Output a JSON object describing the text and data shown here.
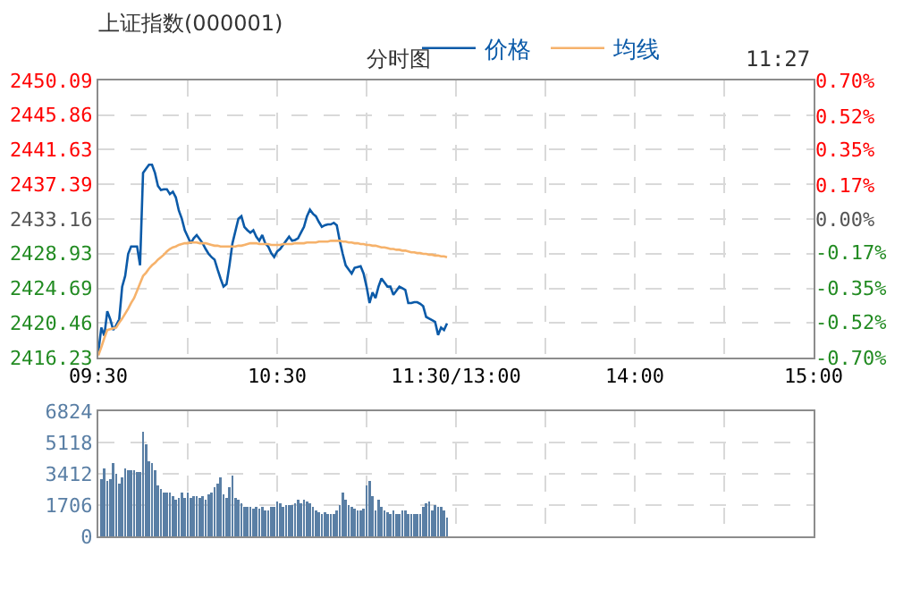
{
  "chart_data": [
    {
      "type": "line",
      "title": "上证指数(000001)",
      "subtitle": "分时图",
      "annotations": [
        "11:27"
      ],
      "legend": "top",
      "grid": true,
      "categories": [
        "09:30",
        null,
        null,
        null,
        null,
        null,
        null,
        null,
        null,
        null,
        null,
        null,
        null,
        null,
        null,
        null,
        null,
        null,
        null,
        null,
        null,
        null,
        null,
        null,
        null,
        null,
        null,
        null,
        null,
        null,
        null,
        null,
        null,
        null,
        null,
        null,
        null,
        null,
        null,
        null,
        null,
        null,
        null,
        null,
        null,
        null,
        null,
        null,
        null,
        null,
        null,
        null,
        null,
        null,
        null,
        null,
        null,
        null,
        null,
        null,
        "10:30",
        null,
        null,
        null,
        null,
        null,
        null,
        null,
        null,
        null,
        null,
        null,
        null,
        null,
        null,
        null,
        null,
        null,
        null,
        null,
        null,
        null,
        null,
        null,
        null,
        null,
        null,
        null,
        null,
        null,
        null,
        null,
        null,
        null,
        null,
        null,
        null,
        null,
        null,
        null,
        null,
        null,
        null,
        null,
        null,
        null,
        null,
        null,
        null,
        null,
        null,
        null,
        null,
        null,
        null,
        null,
        null,
        null,
        null,
        null,
        "11:30/13:00",
        null,
        null,
        null,
        null,
        null,
        null,
        null,
        null,
        null,
        null,
        null,
        null,
        null,
        null,
        null,
        null,
        null,
        null,
        null,
        null,
        null,
        null,
        null,
        null,
        null,
        null,
        null,
        null,
        null,
        null,
        null,
        null,
        null,
        null,
        null,
        null,
        null,
        null,
        null,
        null,
        null,
        null,
        null,
        null,
        null,
        null,
        null,
        null,
        null,
        null,
        null,
        null,
        null,
        null,
        null,
        null,
        null,
        null,
        null,
        "14:00",
        null,
        null,
        null,
        null,
        null,
        null,
        null,
        null,
        null,
        null,
        null,
        null,
        null,
        null,
        null,
        null,
        null,
        null,
        null,
        null,
        null,
        null,
        null,
        null,
        null,
        null,
        null,
        null,
        null,
        null,
        null,
        null,
        null,
        null,
        null,
        null,
        null,
        null,
        null,
        null,
        null,
        null,
        null,
        null,
        null,
        null,
        null,
        null,
        null,
        null,
        null,
        null,
        null,
        null,
        null,
        null,
        null,
        null,
        null,
        "15:00"
      ],
      "ylim": [
        2416.23,
        2450.09
      ],
      "yticks": [
        2416.23,
        2420.46,
        2424.69,
        2428.93,
        2433.16,
        2437.39,
        2441.63,
        2445.86,
        2450.09
      ],
      "y2lim": [
        -0.7,
        0.7
      ],
      "y2ticks": [
        {
          "value": -0.7,
          "label": "-0.70%"
        },
        {
          "value": -0.52,
          "label": "-0.52%"
        },
        {
          "value": -0.35,
          "label": "-0.35%"
        },
        {
          "value": -0.17,
          "label": "-0.17%"
        },
        {
          "value": 0,
          "label": "0.00%"
        },
        {
          "value": 0.17,
          "label": "0.17%"
        },
        {
          "value": 0.35,
          "label": "0.35%"
        },
        {
          "value": 0.52,
          "label": "0.52%"
        },
        {
          "value": 0.7,
          "label": "0.70%"
        }
      ],
      "series": [
        {
          "name": "价格",
          "color": "#0b5aa8",
          "values": [
            2416.9,
            2419.9,
            2418.9,
            2421.9,
            2420.9,
            2419.6,
            2420.2,
            2420.9,
            2424.9,
            2426.2,
            2428.9,
            2429.8,
            2429.8,
            2429.8,
            2427.5,
            2438.8,
            2439.3,
            2439.8,
            2439.8,
            2438.8,
            2437.2,
            2436.7,
            2436.8,
            2436.8,
            2436.2,
            2436.5,
            2435.8,
            2434.2,
            2433.2,
            2431.8,
            2431.0,
            2430.2,
            2430.8,
            2431.2,
            2430.7,
            2430.2,
            2429.5,
            2428.9,
            2428.5,
            2428.2,
            2427.0,
            2425.9,
            2424.9,
            2425.2,
            2427.5,
            2430.2,
            2431.7,
            2433.2,
            2433.5,
            2432.2,
            2431.8,
            2431.5,
            2431.8,
            2431.0,
            2430.5,
            2431.2,
            2430.2,
            2429.8,
            2429.0,
            2428.5,
            2429.2,
            2429.5,
            2430.0,
            2430.5,
            2431.0,
            2430.5,
            2430.6,
            2430.8,
            2431.5,
            2432.2,
            2433.5,
            2434.3,
            2433.8,
            2433.5,
            2432.8,
            2432.2,
            2432.4,
            2432.5,
            2432.5,
            2432.7,
            2432.4,
            2430.5,
            2428.9,
            2427.5,
            2427.0,
            2426.5,
            2427.2,
            2427.3,
            2427.4,
            2426.5,
            2424.9,
            2422.9,
            2424.2,
            2423.5,
            2424.9,
            2425.9,
            2425.4,
            2424.9,
            2424.9,
            2423.9,
            2424.4,
            2424.9,
            2424.7,
            2424.5,
            2422.9,
            2422.9,
            2423.0,
            2423.0,
            2422.8,
            2422.5,
            2421.2,
            2421.0,
            2420.8,
            2420.6,
            2419.0,
            2419.9,
            2419.6,
            2420.4,
            null,
            null,
            null,
            null,
            null,
            null,
            null,
            null,
            null,
            null,
            null,
            null,
            null,
            null,
            null,
            null,
            null,
            null,
            null,
            null,
            null,
            null,
            null,
            null,
            null,
            null,
            null,
            null,
            null,
            null,
            null,
            null,
            null,
            null,
            null,
            null,
            null,
            null,
            null,
            null,
            null,
            null,
            null,
            null,
            null,
            null,
            null,
            null,
            null,
            null,
            null,
            null,
            null,
            null,
            null,
            null,
            null,
            null,
            null,
            null,
            null,
            null,
            null,
            null,
            null,
            null,
            null,
            null,
            null,
            null,
            null,
            null,
            null,
            null,
            null,
            null,
            null,
            null,
            null,
            null,
            null,
            null,
            null,
            null,
            null,
            null,
            null,
            null,
            null,
            null,
            null,
            null,
            null,
            null,
            null,
            null,
            null,
            null,
            null,
            null,
            null,
            null,
            null,
            null,
            null,
            null,
            null,
            null,
            null,
            null,
            null,
            null,
            null,
            null,
            null,
            null,
            null,
            null,
            null,
            null,
            null,
            null,
            null
          ]
        },
        {
          "name": "均线",
          "color": "#f6b26b",
          "values": [
            2416.5,
            2417.5,
            2418.6,
            2419.6,
            2419.7,
            2419.8,
            2419.9,
            2420.5,
            2421.0,
            2421.6,
            2422.2,
            2422.9,
            2423.5,
            2424.4,
            2425.3,
            2426.2,
            2426.6,
            2427.1,
            2427.5,
            2427.8,
            2428.2,
            2428.5,
            2428.8,
            2429.2,
            2429.5,
            2429.7,
            2429.8,
            2430.0,
            2430.1,
            2430.2,
            2430.2,
            2430.3,
            2430.3,
            2430.3,
            2430.2,
            2430.2,
            2430.2,
            2430.1,
            2430.0,
            2429.9,
            2429.9,
            2429.8,
            2429.8,
            2429.8,
            2429.8,
            2429.8,
            2429.8,
            2429.9,
            2429.9,
            2430.0,
            2430.1,
            2430.2,
            2430.2,
            2430.2,
            2430.1,
            2430.1,
            2430.1,
            2430.1,
            2430.0,
            2430.0,
            2430.0,
            2430.0,
            2430.1,
            2430.1,
            2430.1,
            2430.1,
            2430.2,
            2430.2,
            2430.2,
            2430.2,
            2430.3,
            2430.3,
            2430.3,
            2430.3,
            2430.4,
            2430.4,
            2430.4,
            2430.4,
            2430.5,
            2430.5,
            2430.5,
            2430.5,
            2430.4,
            2430.4,
            2430.3,
            2430.3,
            2430.2,
            2430.2,
            2430.1,
            2430.1,
            2430.0,
            2430.0,
            2429.9,
            2429.9,
            2429.8,
            2429.7,
            2429.7,
            2429.6,
            2429.5,
            2429.5,
            2429.4,
            2429.4,
            2429.3,
            2429.3,
            2429.2,
            2429.1,
            2429.1,
            2429.0,
            2429.0,
            2428.9,
            2428.9,
            2428.8,
            2428.8,
            2428.7,
            2428.7,
            2428.6,
            2428.6,
            2428.5,
            null,
            null,
            null,
            null,
            null,
            null,
            null,
            null,
            null,
            null,
            null,
            null,
            null,
            null,
            null,
            null,
            null,
            null,
            null,
            null,
            null,
            null,
            null,
            null,
            null,
            null,
            null,
            null,
            null,
            null,
            null,
            null,
            null,
            null,
            null,
            null,
            null,
            null,
            null,
            null,
            null,
            null,
            null,
            null,
            null,
            null,
            null,
            null,
            null,
            null,
            null,
            null,
            null,
            null,
            null,
            null,
            null,
            null,
            null,
            null,
            null,
            null,
            null,
            null,
            null,
            null,
            null,
            null,
            null,
            null,
            null,
            null,
            null,
            null,
            null,
            null,
            null,
            null,
            null,
            null,
            null,
            null,
            null,
            null,
            null,
            null,
            null,
            null,
            null,
            null,
            null,
            null,
            null,
            null,
            null,
            null,
            null,
            null,
            null,
            null,
            null,
            null,
            null,
            null,
            null,
            null,
            null,
            null,
            null,
            null,
            null,
            null,
            null,
            null,
            null,
            null,
            null,
            null,
            null,
            null,
            null,
            null,
            null
          ]
        }
      ]
    },
    {
      "type": "bar",
      "grid": true,
      "tick_labels": "y",
      "color": "#5a7fa5",
      "categories": [
        null,
        null,
        null,
        null,
        null,
        null,
        null,
        null,
        null,
        null,
        null,
        null,
        null,
        null,
        null,
        null,
        null,
        null,
        null,
        null,
        null,
        null,
        null,
        null,
        null,
        null,
        null,
        null,
        null,
        null,
        null,
        null,
        null,
        null,
        null,
        null,
        null,
        null,
        null,
        null,
        null,
        null,
        null,
        null,
        null,
        null,
        null,
        null,
        null,
        null,
        null,
        null,
        null,
        null,
        null,
        null,
        null,
        null,
        null,
        null,
        null,
        null,
        null,
        null,
        null,
        null,
        null,
        null,
        null,
        null,
        null,
        null,
        null,
        null,
        null,
        null,
        null,
        null,
        null,
        null,
        null,
        null,
        null,
        null,
        null,
        null,
        null,
        null,
        null,
        null,
        null,
        null,
        null,
        null,
        null,
        null,
        null,
        null,
        null,
        null,
        null,
        null,
        null,
        null,
        null,
        null,
        null,
        null,
        null,
        null,
        null,
        null,
        null,
        null,
        null,
        null,
        null,
        null,
        null,
        null,
        null,
        null,
        null,
        null,
        null,
        null,
        null,
        null,
        null,
        null,
        null,
        null,
        null,
        null,
        null,
        null,
        null,
        null,
        null,
        null,
        null,
        null,
        null,
        null,
        null,
        null,
        null,
        null,
        null,
        null,
        null,
        null,
        null,
        null,
        null,
        null,
        null,
        null,
        null,
        null,
        null,
        null,
        null,
        null,
        null,
        null,
        null,
        null,
        null,
        null,
        null,
        null,
        null,
        null,
        null,
        null,
        null,
        null,
        null,
        null,
        null,
        null,
        null,
        null,
        null,
        null,
        null,
        null,
        null,
        null,
        null,
        null,
        null,
        null,
        null,
        null,
        null,
        null,
        null,
        null,
        null,
        null,
        null,
        null,
        null,
        null,
        null,
        null,
        null,
        null,
        null,
        null,
        null,
        null,
        null,
        null,
        null,
        null,
        null,
        null,
        null,
        null,
        null,
        null,
        null,
        null,
        null,
        null,
        null,
        null,
        null,
        null,
        null,
        null,
        null,
        null,
        null,
        null,
        null,
        null,
        null
      ],
      "ylim": [
        0,
        6824
      ],
      "yticks": [
        0,
        1706,
        3412,
        5118,
        6824
      ],
      "values": [
        null,
        3100,
        3700,
        3000,
        3100,
        4000,
        3400,
        2900,
        3200,
        3700,
        3600,
        3600,
        3600,
        3500,
        3500,
        5700,
        5000,
        4100,
        4000,
        3600,
        2800,
        2600,
        2400,
        2400,
        2400,
        2200,
        2000,
        2100,
        2400,
        2100,
        2400,
        2100,
        2200,
        2200,
        2100,
        2200,
        2000,
        2300,
        2400,
        2700,
        2900,
        3200,
        2300,
        2100,
        2700,
        3300,
        2100,
        2000,
        1800,
        1600,
        1600,
        1600,
        1500,
        1600,
        1500,
        1600,
        1400,
        1400,
        1600,
        1600,
        1900,
        1800,
        1600,
        1700,
        1700,
        1700,
        1800,
        2000,
        1800,
        2000,
        1900,
        1800,
        1600,
        1400,
        1300,
        1200,
        1300,
        1200,
        1200,
        1200,
        1400,
        1700,
        2400,
        2000,
        1700,
        1600,
        1500,
        1400,
        1400,
        1500,
        2800,
        3000,
        2200,
        1400,
        2000,
        1600,
        1400,
        1300,
        1200,
        1400,
        1200,
        1200,
        1400,
        1400,
        1200,
        1200,
        1200,
        1200,
        1200,
        1600,
        1800,
        1900,
        1400,
        1700,
        1600,
        1600,
        1400,
        1000,
        null,
        null,
        null,
        null,
        null,
        null,
        null,
        null,
        null,
        null,
        null,
        null,
        null,
        null,
        null,
        null,
        null,
        null,
        null,
        null,
        null,
        null,
        null,
        null,
        null,
        null,
        null,
        null,
        null,
        null,
        null,
        null,
        null,
        null,
        null,
        null,
        null,
        null,
        null,
        null,
        null,
        null,
        null,
        null,
        null,
        null,
        null,
        null,
        null,
        null,
        null,
        null,
        null,
        null,
        null,
        null,
        null,
        null,
        null,
        null,
        null,
        null,
        null,
        null,
        null,
        null,
        null,
        null,
        null,
        null,
        null,
        null,
        null,
        null,
        null,
        null,
        null,
        null,
        null,
        null,
        null,
        null,
        null,
        null,
        null,
        null,
        null,
        null,
        null,
        null,
        null,
        null,
        null,
        null,
        null,
        null,
        null,
        null,
        null,
        null,
        null,
        null,
        null,
        null,
        null,
        null,
        null,
        null,
        null,
        null,
        null,
        null,
        null,
        null,
        null,
        null,
        null,
        null,
        null,
        null,
        null,
        null,
        null
      ]
    }
  ]
}
